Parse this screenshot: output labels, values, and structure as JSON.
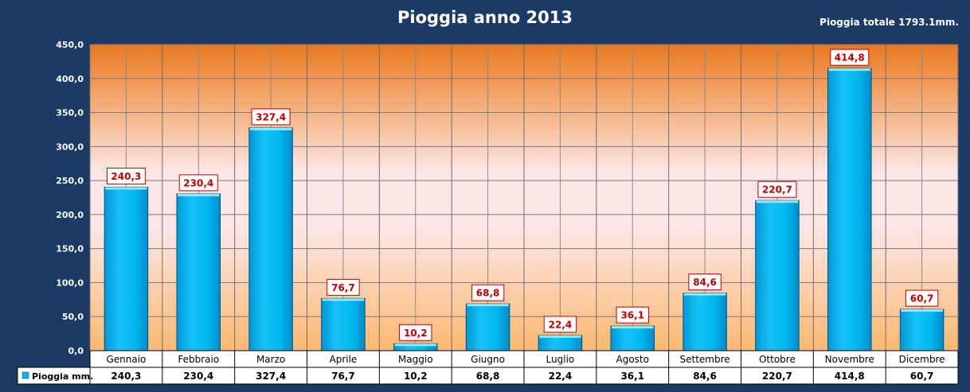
{
  "chart_data": {
    "type": "bar",
    "title": "Pioggia anno 2013",
    "annotation": "Pioggia totale 1793.1mm.",
    "categories": [
      "Gennaio",
      "Febbraio",
      "Marzo",
      "Aprile",
      "Maggio",
      "Giugno",
      "Luglio",
      "Agosto",
      "Settembre",
      "Ottobre",
      "Novembre",
      "Dicembre"
    ],
    "series": [
      {
        "name": "Pioggia mm.",
        "values": [
          240.3,
          230.4,
          327.4,
          76.7,
          10.2,
          68.8,
          22.4,
          36.1,
          84.6,
          220.7,
          414.8,
          60.7
        ],
        "value_labels": [
          "240,3",
          "230,4",
          "327,4",
          "76,7",
          "10,2",
          "68,8",
          "22,4",
          "36,1",
          "84,6",
          "220,7",
          "414,8",
          "60,7"
        ]
      }
    ],
    "ylim": [
      0,
      450
    ],
    "y_ticks": [
      "0,0",
      "50,0",
      "100,0",
      "150,0",
      "200,0",
      "250,0",
      "300,0",
      "350,0",
      "400,0",
      "450,0"
    ],
    "grid": true,
    "data_table": true,
    "colors": {
      "background": "#1b3a66",
      "bar": "#00b8f0",
      "bar_top": "#7fe6ff",
      "data_label": "#c00000",
      "plot_top": "#e87820",
      "plot_middle": "#fde4e4",
      "plot_bottom": "#fbb870"
    }
  }
}
